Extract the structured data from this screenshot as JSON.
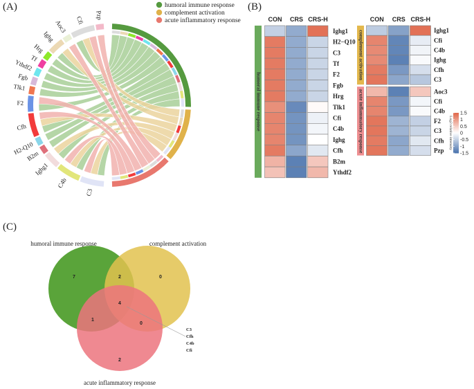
{
  "panels": {
    "A": "(A)",
    "B": "(B)",
    "C": "(C)"
  },
  "chart_data": [
    {
      "type": "chord",
      "panel": "A",
      "legend": [
        {
          "label": "humoral immune response",
          "color": "#559a3f"
        },
        {
          "label": "complement activation",
          "color": "#e0b24a"
        },
        {
          "label": "acute inflammatory response",
          "color": "#e8786e"
        }
      ],
      "legend_position": "top-right",
      "categories": [
        {
          "name": "humoral immune response",
          "color": "#559a3f",
          "ribbon_color": "#a8cf98"
        },
        {
          "name": "complement activation",
          "color": "#e0b24a",
          "ribbon_color": "#ebd49d"
        },
        {
          "name": "acute inflammatory response",
          "color": "#e8786e",
          "ribbon_color": "#f1b1ae"
        }
      ],
      "genes": [
        {
          "name": "Pzp",
          "color": "#f3b9c9",
          "links": [
            "acute inflammatory response"
          ]
        },
        {
          "name": "Cfi",
          "color": "#dcdcdc",
          "links": [
            "humoral immune response",
            "complement activation",
            "acute inflammatory response"
          ]
        },
        {
          "name": "Aoc3",
          "color": "#eaf0d6",
          "links": [
            "acute inflammatory response"
          ]
        },
        {
          "name": "Ighg",
          "color": "#ecd9b4",
          "links": [
            "humoral immune response",
            "complement activation"
          ]
        },
        {
          "name": "Hrg",
          "color": "#8ee82a",
          "links": [
            "humoral immune response"
          ]
        },
        {
          "name": "Tf",
          "color": "#ef3fa0",
          "links": [
            "humoral immune response"
          ]
        },
        {
          "name": "Ythdf2",
          "color": "#6fe6ee",
          "links": [
            "humoral immune response"
          ]
        },
        {
          "name": "Fgb",
          "color": "#d7b9da",
          "links": [
            "humoral immune response"
          ]
        },
        {
          "name": "Tlk1",
          "color": "#ef7650",
          "links": [
            "humoral immune response"
          ]
        },
        {
          "name": "F2",
          "color": "#6b93e6",
          "links": [
            "humoral immune response",
            "acute inflammatory response"
          ]
        },
        {
          "name": "Cfh",
          "color": "#f23b3b",
          "links": [
            "humoral immune response",
            "complement activation",
            "acute inflammatory response"
          ]
        },
        {
          "name": "H2-Q10",
          "color": "#8ad6ea",
          "links": [
            "humoral immune response"
          ]
        },
        {
          "name": "B2m",
          "color": "#df6f7a",
          "links": [
            "humoral immune response"
          ]
        },
        {
          "name": "Ighg1",
          "color": "#f2dcdc",
          "links": [
            "humoral immune response",
            "complement activation"
          ]
        },
        {
          "name": "C4b",
          "color": "#e2e67a",
          "links": [
            "humoral immune response",
            "complement activation",
            "acute inflammatory response"
          ]
        },
        {
          "name": "C3",
          "color": "#e0e4f6",
          "links": [
            "humoral immune response",
            "complement activation",
            "acute inflammatory response"
          ]
        }
      ]
    },
    {
      "type": "heatmap",
      "panel": "B",
      "columns": [
        "CON",
        "CRS",
        "CRS-H"
      ],
      "colorbar": {
        "label": "Log2 relative intensity",
        "ticks": [
          "1.5",
          "1",
          "0.5",
          "0",
          "-0.5",
          "-1",
          "-1.5"
        ],
        "range": [
          -1.5,
          1.5
        ],
        "low_color": "#4a73ad",
        "mid_color": "#ffffff",
        "high_color": "#e0674a"
      },
      "groups": [
        {
          "name": "humoral immune response",
          "color": "#6aaa5c",
          "block": "left",
          "rows": [
            {
              "gene": "Ighg1",
              "values": [
                -0.5,
                -0.9,
                1.4
              ]
            },
            {
              "gene": "H2−Q10",
              "values": [
                1.3,
                -0.9,
                -0.45
              ]
            },
            {
              "gene": "C3",
              "values": [
                1.3,
                -0.9,
                -0.45
              ]
            },
            {
              "gene": "Tf",
              "values": [
                1.3,
                -0.9,
                -0.45
              ]
            },
            {
              "gene": "F2",
              "values": [
                1.3,
                -0.9,
                -0.45
              ]
            },
            {
              "gene": "Fgb",
              "values": [
                1.3,
                -0.9,
                -0.45
              ]
            },
            {
              "gene": "Hrg",
              "values": [
                1.3,
                -0.9,
                -0.45
              ]
            },
            {
              "gene": "Tlk1",
              "values": [
                1.1,
                -1.25,
                0.05
              ]
            },
            {
              "gene": "Cfi",
              "values": [
                1.2,
                -1.15,
                -0.15
              ]
            },
            {
              "gene": "C4b",
              "values": [
                1.2,
                -1.15,
                -0.1
              ]
            },
            {
              "gene": "Ighg",
              "values": [
                1.2,
                -1.15,
                0.0
              ]
            },
            {
              "gene": "Cfh",
              "values": [
                1.3,
                -0.95,
                -0.25
              ]
            },
            {
              "gene": "B2m",
              "values": [
                0.75,
                -1.35,
                0.55
              ]
            },
            {
              "gene": "Ythdf2",
              "values": [
                0.6,
                -1.35,
                0.7
              ]
            }
          ]
        },
        {
          "name": "complement activation",
          "color": "#e3b84d",
          "block": "right",
          "rows": [
            {
              "gene": "Ighg1",
              "values": [
                -0.55,
                -1.0,
                1.4
              ]
            },
            {
              "gene": "Cfi",
              "values": [
                1.2,
                -1.3,
                -0.2
              ]
            },
            {
              "gene": "C4b",
              "values": [
                1.15,
                -1.3,
                -0.12
              ]
            },
            {
              "gene": "Ighg",
              "values": [
                1.15,
                -1.35,
                -0.05
              ]
            },
            {
              "gene": "Cfh",
              "values": [
                1.3,
                -1.1,
                -0.35
              ]
            },
            {
              "gene": "C3",
              "values": [
                1.35,
                -0.95,
                -0.6
              ]
            }
          ]
        },
        {
          "name": "acute inflammatory response",
          "color": "#ee8f91",
          "block": "right",
          "rows": [
            {
              "gene": "Aoc3",
              "values": [
                0.7,
                -1.35,
                0.55
              ]
            },
            {
              "gene": "Cfi",
              "values": [
                1.2,
                -1.1,
                -0.1
              ]
            },
            {
              "gene": "C4b",
              "values": [
                1.2,
                -1.1,
                -0.05
              ]
            },
            {
              "gene": "F2",
              "values": [
                1.35,
                -0.8,
                -0.5
              ]
            },
            {
              "gene": "C3",
              "values": [
                1.35,
                -0.8,
                -0.45
              ]
            },
            {
              "gene": "Cfh",
              "values": [
                1.3,
                -0.95,
                -0.25
              ]
            },
            {
              "gene": "Pzp",
              "values": [
                1.35,
                -0.9,
                -0.35
              ]
            }
          ]
        }
      ]
    },
    {
      "type": "venn",
      "panel": "C",
      "sets": [
        {
          "name": "humoral immune response",
          "color": "#5aa43a"
        },
        {
          "name": "complement activation",
          "color": "#e2c24f"
        },
        {
          "name": "acute inflammatory response",
          "color": "#ec747e"
        }
      ],
      "regions": [
        {
          "sets": [
            "humoral immune response"
          ],
          "count": "7"
        },
        {
          "sets": [
            "humoral immune response",
            "complement activation"
          ],
          "count": "2"
        },
        {
          "sets": [
            "complement activation"
          ],
          "count": "0"
        },
        {
          "sets": [
            "humoral immune response",
            "complement activation",
            "acute inflammatory response"
          ],
          "count": "4"
        },
        {
          "sets": [
            "humoral immune response",
            "acute inflammatory response"
          ],
          "count": "1"
        },
        {
          "sets": [
            "complement activation",
            "acute inflammatory response"
          ],
          "count": "0"
        },
        {
          "sets": [
            "acute inflammatory response"
          ],
          "count": "2"
        }
      ],
      "annotation": {
        "region": "all three",
        "genes": [
          "C3",
          "Cfh",
          "C4b",
          "Cfi"
        ]
      }
    }
  ]
}
